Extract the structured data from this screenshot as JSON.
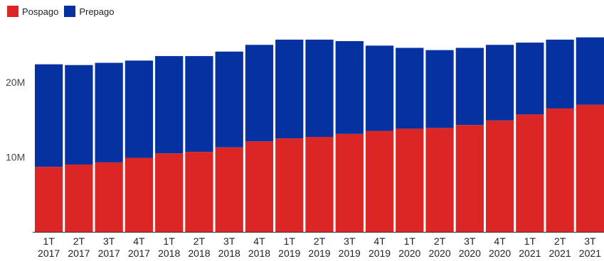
{
  "legend": [
    {
      "name": "Pospago",
      "color": "#dc2626"
    },
    {
      "name": "Prepago",
      "color": "#0631a0"
    }
  ],
  "chart_data": {
    "type": "bar",
    "stacked": true,
    "categories": [
      [
        "1T",
        "2017"
      ],
      [
        "2T",
        "2017"
      ],
      [
        "3T",
        "2017"
      ],
      [
        "4T",
        "2017"
      ],
      [
        "1T",
        "2018"
      ],
      [
        "2T",
        "2018"
      ],
      [
        "3T",
        "2018"
      ],
      [
        "4T",
        "2018"
      ],
      [
        "1T",
        "2019"
      ],
      [
        "2T",
        "2019"
      ],
      [
        "3T",
        "2019"
      ],
      [
        "4T",
        "2019"
      ],
      [
        "1T",
        "2020"
      ],
      [
        "2T",
        "2020"
      ],
      [
        "3T",
        "2020"
      ],
      [
        "4T",
        "2020"
      ],
      [
        "1T",
        "2021"
      ],
      [
        "2T",
        "2021"
      ],
      [
        "3T",
        "2021"
      ]
    ],
    "series": [
      {
        "name": "Pospago",
        "color": "#dc2626",
        "values": [
          8.7,
          9.0,
          9.3,
          9.9,
          10.5,
          10.7,
          11.3,
          12.1,
          12.5,
          12.7,
          13.1,
          13.5,
          13.8,
          13.9,
          14.3,
          14.9,
          15.7,
          16.5,
          17.0
        ]
      },
      {
        "name": "Prepago",
        "color": "#0631a0",
        "values": [
          13.7,
          13.3,
          13.3,
          13.0,
          13.0,
          12.8,
          12.8,
          12.9,
          13.2,
          13.0,
          12.4,
          11.4,
          10.8,
          10.4,
          10.3,
          10.1,
          9.6,
          9.2,
          9.0
        ]
      }
    ],
    "yticks": [
      {
        "value": 10,
        "label": "10M"
      },
      {
        "value": 20,
        "label": "20M"
      }
    ],
    "ylim": [
      0,
      30
    ],
    "grid": false,
    "legend_position": "top-left"
  }
}
